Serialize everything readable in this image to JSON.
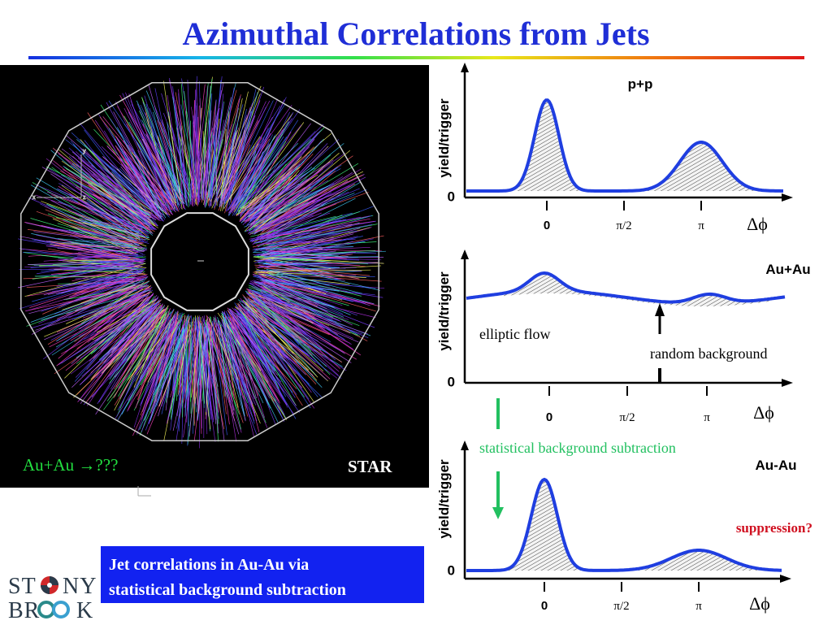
{
  "title": "Azimuthal Correlations from Jets",
  "event_display": {
    "collision_label": "Au+Au →???",
    "experiment_label": "STAR"
  },
  "blue_box": {
    "line1": "Jet correlations in Au-Au via",
    "line2": "statistical background subtraction"
  },
  "logo": {
    "line1": "ST  NY",
    "line2": "BR  K"
  },
  "plots": [
    {
      "ylabel": "yield/trigger",
      "zero_label": "0",
      "title": "p+p",
      "ticks": [
        "0",
        "π/2",
        "π"
      ],
      "axis_var": "Δϕ"
    },
    {
      "ylabel": "yield/trigger",
      "zero_label": "0",
      "title": "Au+Au",
      "ticks": [
        "0",
        "π/2",
        "π"
      ],
      "axis_var": "Δϕ",
      "annotation_flow": "elliptic flow",
      "annotation_bg": "random background"
    },
    {
      "ylabel": "yield/trigger",
      "zero_label": "0",
      "title": "Au-Au",
      "ticks": [
        "0",
        "π/2",
        "π"
      ],
      "axis_var": "Δϕ",
      "annotation_supp": "suppression?"
    }
  ],
  "subtraction_label": "statistical background subtraction",
  "colors": {
    "title": "#1f2ed6",
    "curve": "#1f3ee0",
    "green": "#22c060",
    "red": "#d01020"
  }
}
